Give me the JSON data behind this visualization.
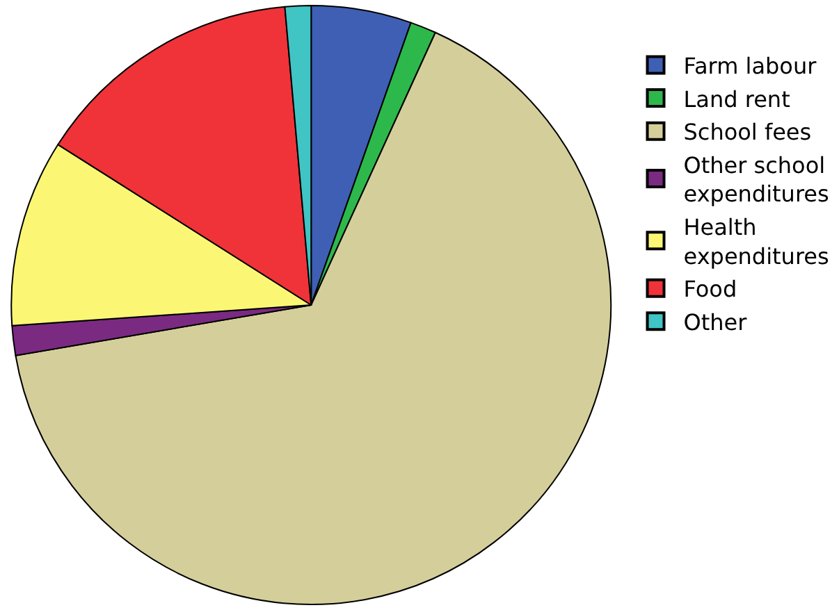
{
  "chart_data": {
    "type": "pie",
    "categories": [
      "Farm labour",
      "Land rent",
      "School fees",
      "Other school expenditures",
      "Health expenditures",
      "Food",
      "Other"
    ],
    "values": [
      5.4,
      1.4,
      65.5,
      1.6,
      10.1,
      14.6,
      1.4
    ],
    "colors": [
      "#3f5fb4",
      "#2db84c",
      "#d4cf9a",
      "#7b2a82",
      "#fbf775",
      "#ef3339",
      "#40c4c4"
    ],
    "legend": "right"
  }
}
